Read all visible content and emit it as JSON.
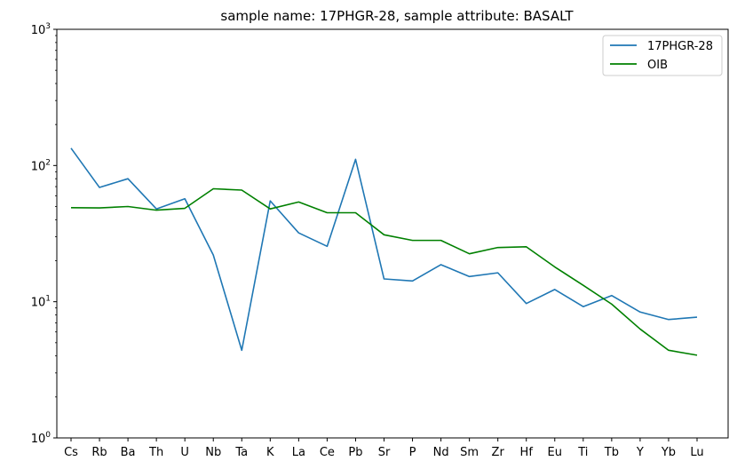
{
  "chart_data": {
    "type": "line",
    "title": "sample name: 17PHGR-28, sample attribute: BASALT",
    "xlabel": "",
    "ylabel": "",
    "yscale": "log",
    "ylim": [
      1,
      1000
    ],
    "yticks": [
      {
        "value": 1,
        "base": "10",
        "exp": "0"
      },
      {
        "value": 10,
        "base": "10",
        "exp": "1"
      },
      {
        "value": 100,
        "base": "10",
        "exp": "2"
      },
      {
        "value": 1000,
        "base": "10",
        "exp": "3"
      }
    ],
    "grid": false,
    "legend_position": "top-right",
    "categories": [
      "Cs",
      "Rb",
      "Ba",
      "Th",
      "U",
      "Nb",
      "Ta",
      "K",
      "La",
      "Ce",
      "Pb",
      "Sr",
      "P",
      "Nd",
      "Sm",
      "Zr",
      "Hf",
      "Eu",
      "Ti",
      "Tb",
      "Y",
      "Yb",
      "Lu"
    ],
    "series": [
      {
        "name": "17PHGR-28",
        "color": "#1f77b4",
        "values": [
          134,
          69,
          80,
          48,
          57,
          22,
          4.4,
          55,
          32,
          25.5,
          111,
          14.7,
          14.2,
          18.7,
          15.3,
          16.3,
          9.7,
          12.3,
          9.2,
          11.1,
          8.4,
          7.4,
          7.7
        ]
      },
      {
        "name": "OIB",
        "color": "#008000",
        "values": [
          49,
          48.8,
          50,
          47,
          48.5,
          67.5,
          66,
          48,
          54,
          45,
          45,
          31,
          28.2,
          28.2,
          22.5,
          25,
          25.3,
          18,
          13.2,
          9.6,
          6.3,
          4.4,
          4.05
        ]
      }
    ]
  }
}
